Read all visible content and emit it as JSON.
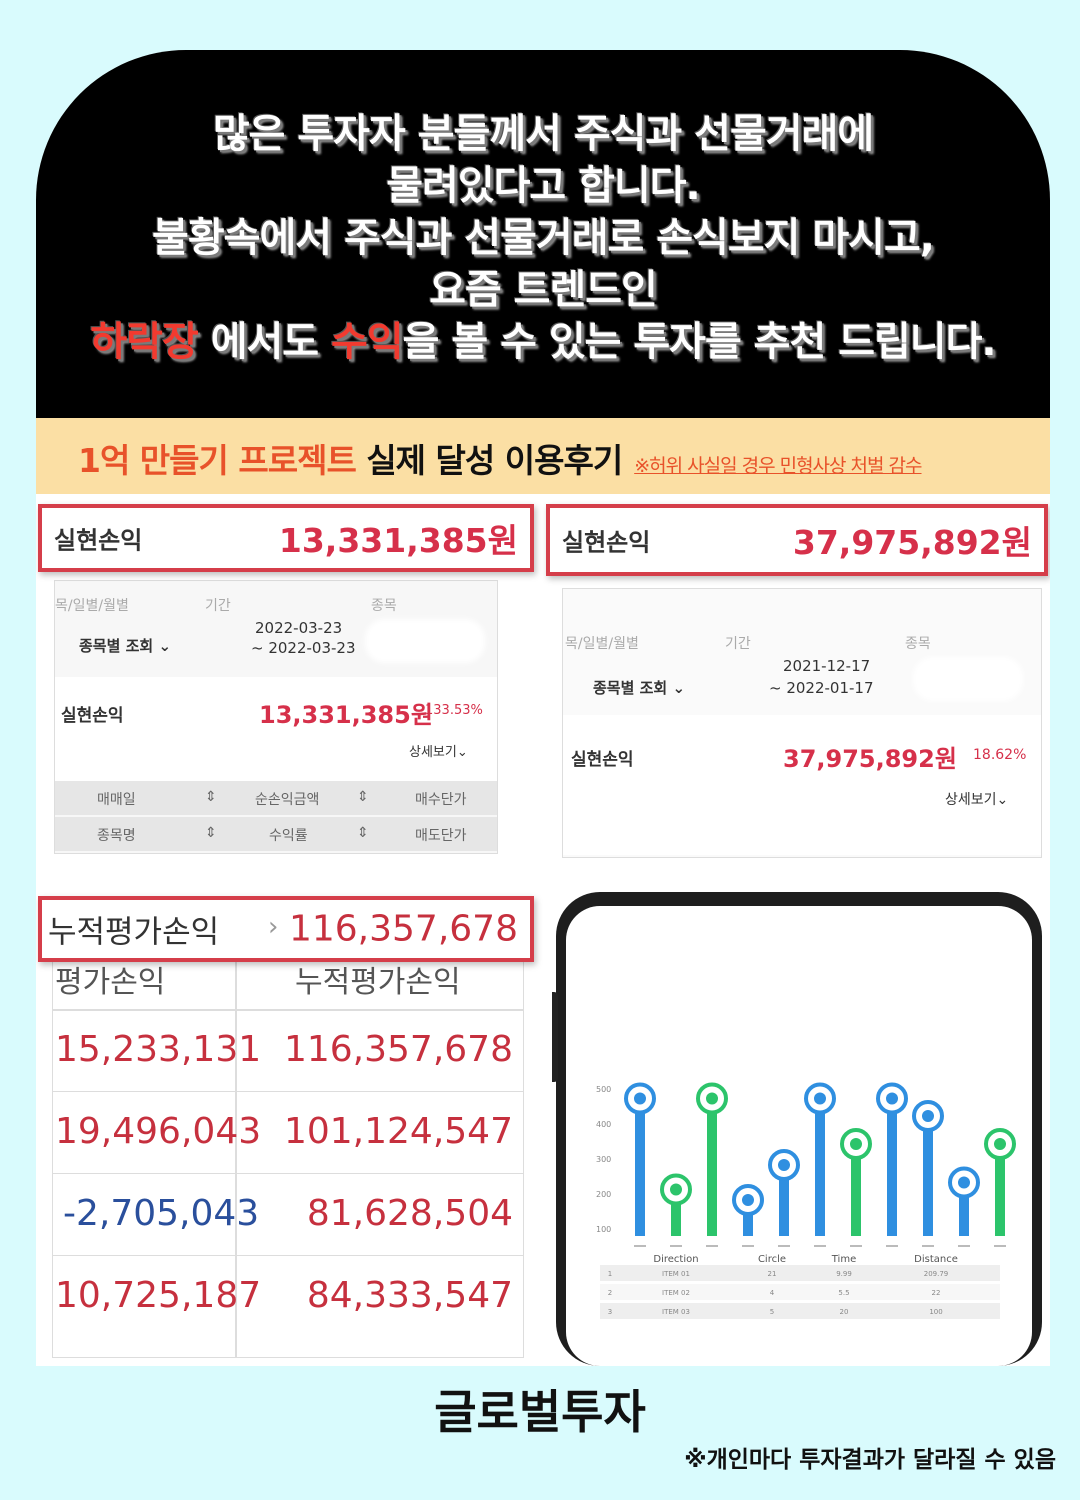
{
  "hero": {
    "lines": [
      "많은 투자자 분들께서 주식과 선물거래에",
      "물려있다고 합니다.",
      "불황속에서 주식과 선물거래로 손식보지 마시고,",
      "요즘 트렌드인"
    ],
    "last_line": {
      "part1_red": "하락장",
      "part2": " 에서도 ",
      "part3_red": "수익",
      "part4": "을 볼 수 있는 투자를 추천 드립니다."
    }
  },
  "banner": {
    "red_text": "1억 만들기 프로젝트",
    "black_text": " 실제 달성 이용후기",
    "note": "※허위 사실일 경우 민형사상 처벌 감수"
  },
  "proof1": {
    "label": "실현손익",
    "value": "13,331,385원",
    "hdr_col1": "목/일별/월별",
    "hdr_col2": "기간",
    "hdr_col3": "종목",
    "query": "종목별 조회",
    "date_from": "2022-03-23",
    "date_to": "~ 2022-03-23",
    "row_label": "실현손익",
    "row_value": "13,331,385원",
    "row_pct": "133.53%",
    "detail": "상세보기",
    "grid": [
      [
        "매매일",
        "순손익금액",
        "매수단가"
      ],
      [
        "종목명",
        "수익률",
        "매도단가"
      ]
    ]
  },
  "proof2": {
    "label": "실현손익",
    "value": "37,975,892원",
    "hdr_col1": "목/일별/월별",
    "hdr_col2": "기간",
    "hdr_col3": "종목",
    "query": "종목별 조회",
    "date_from": "2021-12-17",
    "date_to": "~ 2022-01-17",
    "row_label": "실현손익",
    "row_value": "37,975,892원",
    "row_pct": "18.62%",
    "detail": "상세보기"
  },
  "proof3": {
    "label": "누적평가손익",
    "value": "116,357,678",
    "col1": "평가손익",
    "col2": "누적평가손익",
    "rows": [
      {
        "a": "15,233,131",
        "b": "116,357,678"
      },
      {
        "a": "19,496,043",
        "b": "101,124,547"
      },
      {
        "a": "-2,705,043",
        "b": "81,628,504"
      },
      {
        "a": "10,725,187",
        "b": "84,333,547"
      }
    ]
  },
  "phone_chart": {
    "y_ticks": [
      "500",
      "400",
      "300",
      "200",
      "100"
    ],
    "values": [
      470,
      210,
      470,
      180,
      280,
      470,
      340,
      470,
      420,
      230,
      340
    ],
    "colors": [
      "#2f8fe0",
      "#2cc46b",
      "#2cc46b",
      "#2f8fe0",
      "#2f8fe0",
      "#2f8fe0",
      "#2cc46b",
      "#2f8fe0",
      "#2f8fe0",
      "#2f8fe0",
      "#2cc46b"
    ],
    "table_headers": [
      "Direction",
      "Circle",
      "Time",
      "Distance"
    ],
    "table_rows": [
      [
        "1",
        "ITEM 01",
        "21",
        "9.99",
        "209.79"
      ],
      [
        "2",
        "ITEM 02",
        "4",
        "5.5",
        "22"
      ],
      [
        "3",
        "ITEM 03",
        "5",
        "20",
        "100"
      ]
    ]
  },
  "footer": {
    "title": "글로벌투자",
    "note": "※개인마다 투자결과가 달라질 수 있음"
  }
}
